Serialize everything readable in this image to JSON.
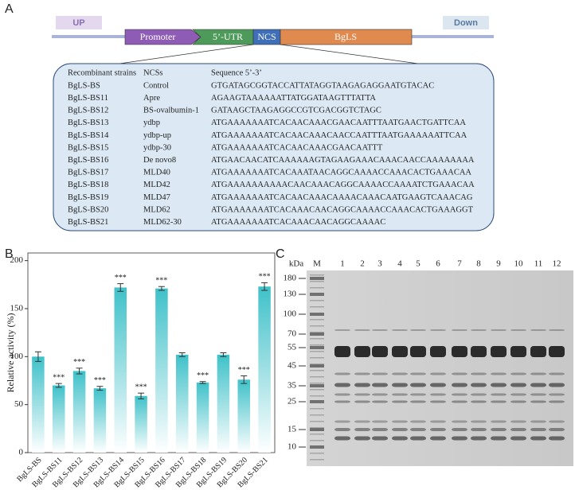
{
  "panel_a": {
    "label": "A",
    "up": "UP",
    "down": "Down",
    "elements": [
      "Promoter",
      "5’-UTR",
      "NCS",
      "BgLS"
    ],
    "table": {
      "header": [
        "Recombinant strains",
        "NCSs",
        "Sequence 5’-3’"
      ],
      "rows": [
        [
          "BgLS-BS",
          "Control",
          "GTGATAGCGGTACCATTATAGGTAAGAGAGGAATGTACAC"
        ],
        [
          "BgLS-BS11",
          "Apre",
          "AGAAGTAAAAAATTATGGATAAGTTTATTA"
        ],
        [
          "BgLS-BS12",
          "BS-ovalbumin-1",
          "GATAAGCTAAGAGGCCGTCGACGGTCTAGC"
        ],
        [
          "BgLS-BS13",
          "ydbp",
          "ATGAAAAAAATCACAACAAACGAACAATTTAATGAACTGATTCAA"
        ],
        [
          "BgLS-BS14",
          "ydbp-up",
          "ATGAAAAAAATCACAACAAACAACCAATTTAATGAAAAAATTCAA"
        ],
        [
          "BgLS-BS15",
          "ydbp-30",
          "ATGAAAAAAATCACAACAAACGAACAATTT"
        ],
        [
          "BgLS-BS16",
          "De novo8",
          "ATGAACAACATCAAAAAAGTAGAAGAAACAAACAACCAAAAAAAA"
        ],
        [
          "BgLS-BS17",
          "MLD40",
          "ATGAAAAAAATCACAAATAACAGGCAAAACCAAACACTGAAACAA"
        ],
        [
          "BgLS-BS18",
          "MLD42",
          "ATGAAAAAAAAAACAACAAACAGGCAAAACCAAAATCTGAAACAA"
        ],
        [
          "BgLS-BS19",
          "MLD47",
          "ATGAAAAAAATCACAACAAACAAAACAAACAATGAAGTCAAACAG"
        ],
        [
          "BgLS-BS20",
          "MLD62",
          "ATGAAAAAAATCACAAACAACAGGCAAAACCAAACACTGAAAGGT"
        ],
        [
          "BgLS-BS21",
          "MLD62-30",
          "ATGAAAAAAATCACAAACAACAGGCAAAAC"
        ]
      ]
    }
  },
  "chart_data": {
    "type": "bar",
    "label": "B",
    "y_label": "Relative activity (%)",
    "categories": [
      "BgLS-BS",
      "BgLS-BS11",
      "BgLS-BS12",
      "BgLS-BS13",
      "BgLS-BS14",
      "BgLS-BS15",
      "BgLS-BS16",
      "BgLS-BS17",
      "BgLS-BS18",
      "BgLS-BS19",
      "BgLS-BS20",
      "BgLS-BS21"
    ],
    "values": [
      100,
      70,
      85,
      67,
      172,
      59,
      171,
      102,
      73,
      102,
      76,
      173
    ],
    "errors": [
      5,
      2,
      3,
      2,
      4,
      3,
      2,
      2,
      1,
      2,
      4,
      4
    ],
    "significance": [
      null,
      "***",
      "***",
      "***",
      "***",
      "***",
      "***",
      null,
      "***",
      null,
      "***",
      "***"
    ],
    "color": "#3fc1c9",
    "ylim": [
      0,
      208
    ],
    "yticks": [
      0,
      50,
      100,
      150,
      200
    ],
    "grid": false
  },
  "panel_c": {
    "label": "C",
    "unit": "kDa",
    "markers": [
      180,
      130,
      100,
      70,
      55,
      45,
      35,
      25,
      15,
      10
    ],
    "lanes": [
      "M",
      "1",
      "2",
      "3",
      "4",
      "5",
      "6",
      "7",
      "8",
      "9",
      "10",
      "11",
      "12"
    ]
  }
}
